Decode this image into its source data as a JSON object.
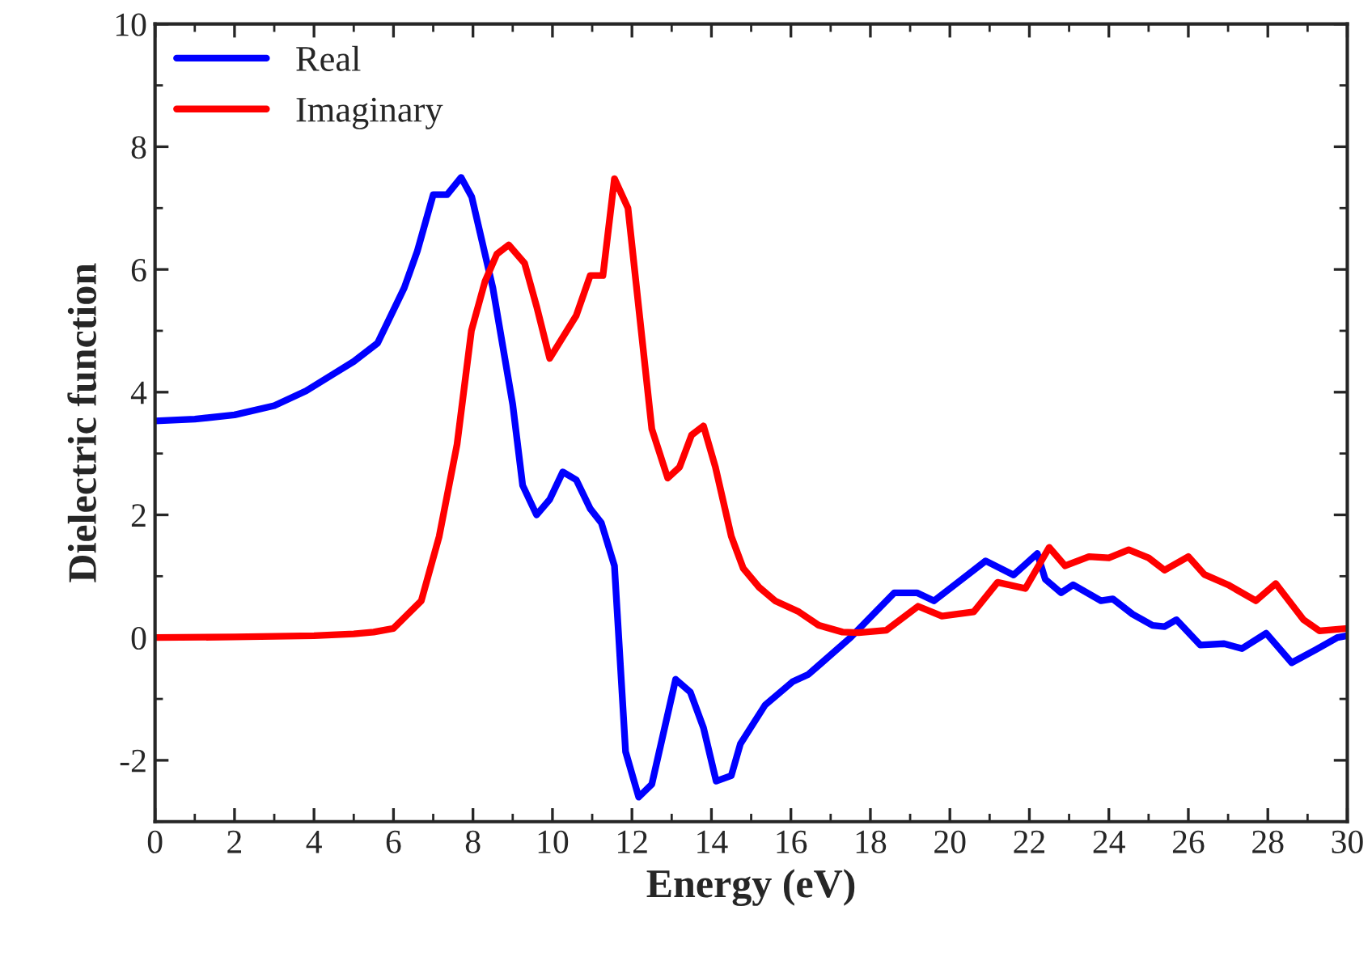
{
  "chart_data": {
    "type": "line",
    "xlabel": "Energy (eV)",
    "ylabel": "Dielectric function",
    "xlim": [
      0,
      30
    ],
    "xticks": [
      0,
      2,
      4,
      6,
      8,
      10,
      12,
      14,
      16,
      18,
      20,
      22,
      24,
      26,
      28,
      30
    ],
    "ylim": [
      -3,
      10
    ],
    "yticks": [
      -2,
      0,
      2,
      4,
      6,
      8,
      10
    ],
    "grid": false,
    "legend": "top left",
    "line_style": "solid",
    "marker": "none",
    "series": [
      {
        "name": "Real",
        "color": "#0000ff",
        "x": [
          0,
          1,
          2,
          3,
          3.8,
          4.5,
          5,
          5.6,
          6.27,
          6.6,
          7.0,
          7.35,
          7.7,
          7.97,
          8.5,
          9.0,
          9.25,
          9.6,
          9.93,
          10.26,
          10.6,
          10.95,
          11.23,
          11.56,
          11.84,
          12.17,
          12.5,
          13.1,
          13.47,
          13.8,
          14.12,
          14.5,
          14.73,
          15.35,
          16.04,
          16.44,
          17.5,
          18.6,
          19.17,
          19.6,
          20.2,
          20.9,
          21.6,
          22.2,
          22.4,
          22.8,
          23.1,
          23.8,
          24.1,
          24.6,
          25.1,
          25.4,
          25.7,
          26.3,
          26.9,
          27.35,
          27.96,
          28.6,
          29.2,
          29.75,
          30
        ],
        "values": [
          3.53,
          3.56,
          3.63,
          3.78,
          4.02,
          4.3,
          4.5,
          4.8,
          5.7,
          6.3,
          7.22,
          7.22,
          7.5,
          7.18,
          5.7,
          3.8,
          2.48,
          2.0,
          2.25,
          2.7,
          2.57,
          2.1,
          1.87,
          1.17,
          -1.86,
          -2.6,
          -2.39,
          -0.68,
          -0.89,
          -1.47,
          -2.34,
          -2.25,
          -1.73,
          -1.1,
          -0.72,
          -0.6,
          0,
          0.73,
          0.73,
          0.6,
          0.9,
          1.25,
          1.02,
          1.37,
          0.95,
          0.73,
          0.86,
          0.6,
          0.63,
          0.38,
          0.2,
          0.18,
          0.29,
          -0.12,
          -0.1,
          -0.18,
          0.07,
          -0.41,
          -0.2,
          0.0,
          0.03
        ]
      },
      {
        "name": "Imaginary",
        "color": "#ff0000",
        "x": [
          0,
          2,
          4,
          5,
          5.5,
          6.0,
          6.7,
          7.15,
          7.6,
          7.96,
          8.3,
          8.6,
          8.9,
          9.3,
          9.6,
          9.93,
          10.6,
          10.95,
          11.27,
          11.56,
          11.9,
          12.5,
          12.9,
          13.2,
          13.5,
          13.8,
          14.1,
          14.5,
          14.8,
          15.2,
          15.6,
          16.2,
          16.7,
          17.3,
          17.7,
          18.4,
          19.2,
          19.8,
          20.6,
          21.2,
          21.9,
          22.5,
          22.9,
          23.5,
          24.0,
          24.5,
          25.0,
          25.4,
          26.0,
          26.4,
          27.0,
          27.7,
          28.2,
          28.9,
          29.3,
          30
        ],
        "values": [
          0,
          0.01,
          0.03,
          0.06,
          0.09,
          0.15,
          0.6,
          1.65,
          3.15,
          5.0,
          5.8,
          6.25,
          6.4,
          6.1,
          5.4,
          4.55,
          5.25,
          5.9,
          5.9,
          7.48,
          7.0,
          3.4,
          2.6,
          2.78,
          3.3,
          3.45,
          2.78,
          1.65,
          1.13,
          0.82,
          0.6,
          0.42,
          0.2,
          0.09,
          0.08,
          0.12,
          0.51,
          0.35,
          0.42,
          0.9,
          0.8,
          1.47,
          1.17,
          1.32,
          1.3,
          1.43,
          1.3,
          1.1,
          1.32,
          1.03,
          0.86,
          0.6,
          0.88,
          0.29,
          0.11,
          0.15
        ]
      }
    ]
  }
}
